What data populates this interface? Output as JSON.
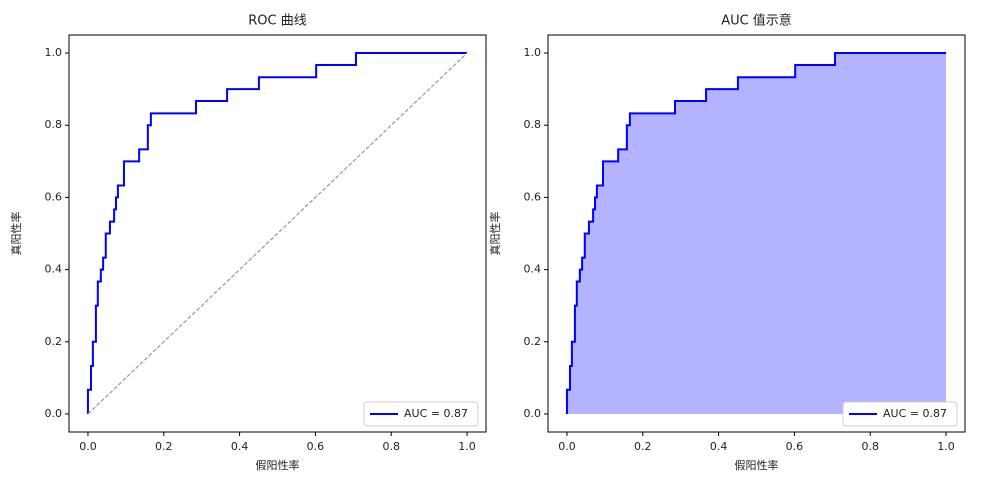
{
  "chart_data": [
    {
      "type": "line",
      "title": "ROC 曲线",
      "xlabel": "假阳性率",
      "ylabel": "真阳性率",
      "xlim": [
        -0.05,
        1.05
      ],
      "ylim": [
        -0.05,
        1.05
      ],
      "xticks": [
        {
          "value": 0,
          "label": "0.0"
        },
        0.2,
        0.4,
        0.6,
        0.8,
        {
          "value": 1,
          "label": "1.0"
        }
      ],
      "yticks": [
        {
          "value": 0,
          "label": "0.0"
        },
        0.2,
        0.4,
        0.6,
        0.8,
        {
          "value": 1,
          "label": "1.0"
        }
      ],
      "legend": "lower right",
      "series": [
        {
          "name": "AUC = 0.87",
          "color": "#0000ff",
          "x": [
            0,
            0,
            0.008,
            0.008,
            0.013,
            0.013,
            0.021,
            0.021,
            0.026,
            0.026,
            0.034,
            0.034,
            0.04,
            0.04,
            0.047,
            0.047,
            0.058,
            0.058,
            0.069,
            0.069,
            0.074,
            0.074,
            0.079,
            0.079,
            0.095,
            0.095,
            0.135,
            0.135,
            0.158,
            0.158,
            0.166,
            0.166,
            0.285,
            0.285,
            0.367,
            0.367,
            0.451,
            0.451,
            0.602,
            0.602,
            0.707,
            0.707,
            1
          ],
          "values": [
            0,
            0.067,
            0.067,
            0.133,
            0.133,
            0.2,
            0.2,
            0.3,
            0.3,
            0.367,
            0.367,
            0.4,
            0.4,
            0.433,
            0.433,
            0.5,
            0.5,
            0.533,
            0.533,
            0.567,
            0.567,
            0.6,
            0.6,
            0.633,
            0.633,
            0.7,
            0.7,
            0.733,
            0.733,
            0.8,
            0.8,
            0.833,
            0.833,
            0.867,
            0.867,
            0.9,
            0.9,
            0.933,
            0.933,
            0.967,
            0.967,
            1,
            1
          ]
        },
        {
          "color": "#999999",
          "dashed": true,
          "x": [
            0,
            1
          ],
          "values": [
            0,
            1
          ]
        }
      ]
    },
    {
      "type": "area",
      "title": "AUC 值示意",
      "xlabel": "假阳性率",
      "ylabel": "真阳性率",
      "xlim": [
        -0.05,
        1.05
      ],
      "ylim": [
        -0.05,
        1.05
      ],
      "xticks": [
        {
          "value": 0,
          "label": "0.0"
        },
        0.2,
        0.4,
        0.6,
        0.8,
        {
          "value": 1,
          "label": "1.0"
        }
      ],
      "yticks": [
        {
          "value": 0,
          "label": "0.0"
        },
        0.2,
        0.4,
        0.6,
        0.8,
        {
          "value": 1,
          "label": "1.0"
        }
      ],
      "legend": "lower right",
      "series": [
        {
          "name": "AUC = 0.87",
          "color": "#0000ff",
          "fill_color": "#b3b3ff",
          "x": [
            0,
            0,
            0.008,
            0.008,
            0.013,
            0.013,
            0.021,
            0.021,
            0.026,
            0.026,
            0.034,
            0.034,
            0.04,
            0.04,
            0.047,
            0.047,
            0.058,
            0.058,
            0.069,
            0.069,
            0.074,
            0.074,
            0.079,
            0.079,
            0.095,
            0.095,
            0.135,
            0.135,
            0.158,
            0.158,
            0.166,
            0.166,
            0.285,
            0.285,
            0.367,
            0.367,
            0.451,
            0.451,
            0.602,
            0.602,
            0.707,
            0.707,
            1
          ],
          "values": [
            0,
            0.067,
            0.067,
            0.133,
            0.133,
            0.2,
            0.2,
            0.3,
            0.3,
            0.367,
            0.367,
            0.4,
            0.4,
            0.433,
            0.433,
            0.5,
            0.5,
            0.533,
            0.533,
            0.567,
            0.567,
            0.6,
            0.6,
            0.633,
            0.633,
            0.7,
            0.7,
            0.733,
            0.733,
            0.8,
            0.8,
            0.833,
            0.833,
            0.867,
            0.867,
            0.9,
            0.9,
            0.933,
            0.933,
            0.967,
            0.967,
            1,
            1
          ]
        }
      ]
    }
  ]
}
